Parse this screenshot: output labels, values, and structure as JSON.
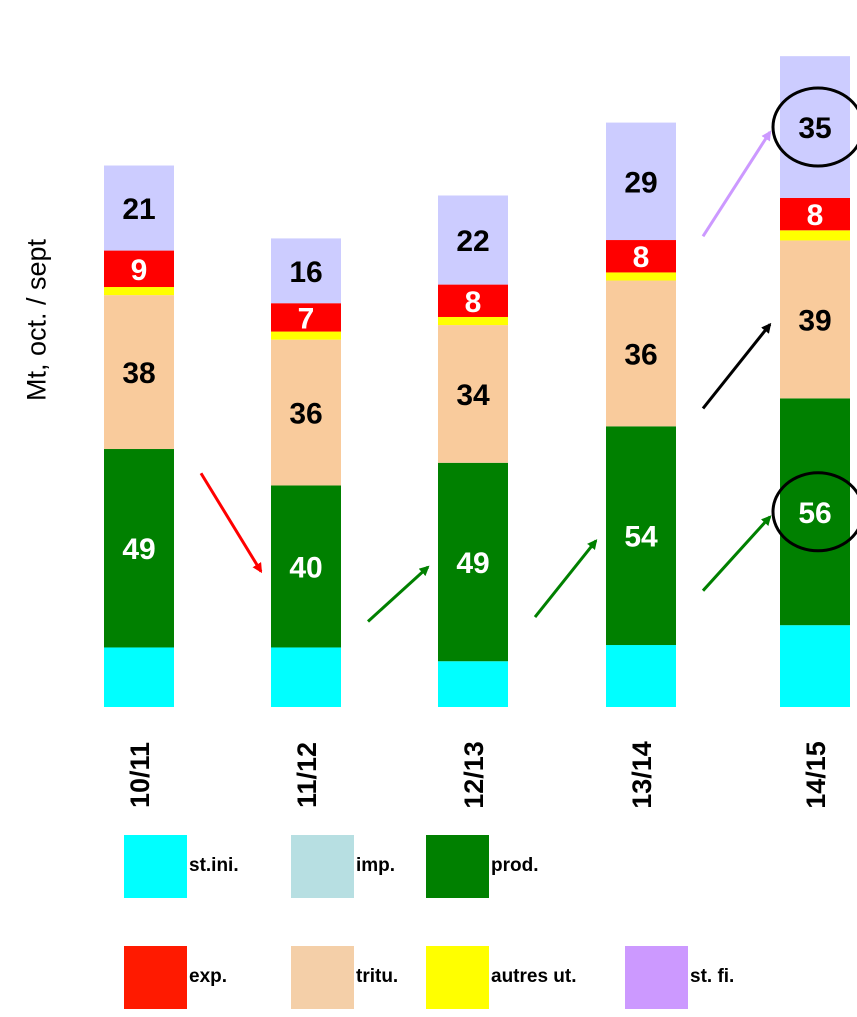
{
  "chart_data": {
    "type": "bar",
    "stacked": true,
    "ylabel": "Mt, oct. / sept",
    "categories": [
      "10/11",
      "11/12",
      "12/13",
      "13/14",
      "14/15"
    ],
    "series": [
      {
        "name": "st.ini.",
        "key": "st_ini",
        "color": "#00ffff",
        "values": [
          14.7,
          14.7,
          11.3,
          15.3,
          20.2
        ],
        "labels": [
          null,
          null,
          null,
          null,
          null
        ],
        "label_color": "#000000"
      },
      {
        "name": "imp.",
        "key": "imp",
        "color": "#b7dfe2",
        "values": [
          0,
          0,
          0,
          0,
          0
        ],
        "labels": [
          null,
          null,
          null,
          null,
          null
        ],
        "label_color": "#000000"
      },
      {
        "name": "prod.",
        "key": "prod",
        "color": "#008000",
        "values": [
          49,
          40,
          49,
          54,
          56
        ],
        "labels": [
          "49",
          "40",
          "49",
          "54",
          "56"
        ],
        "label_color": "#ffffff"
      },
      {
        "name": "tritu.",
        "key": "tritu",
        "color": "#f9cb9c",
        "values": [
          38,
          36,
          34,
          36,
          39
        ],
        "labels": [
          "38",
          "36",
          "34",
          "36",
          "39"
        ],
        "label_color": "#000000"
      },
      {
        "name": "autres ut.",
        "key": "autres_ut",
        "color": "#ffff00",
        "values": [
          2,
          2,
          2,
          2,
          2.5
        ],
        "labels": [
          null,
          null,
          null,
          null,
          null
        ],
        "label_color": "#000000"
      },
      {
        "name": "exp.",
        "key": "exp",
        "color": "#ff0000",
        "values": [
          9,
          7,
          8,
          8,
          8
        ],
        "labels": [
          "9",
          "7",
          "8",
          "8",
          "8"
        ],
        "label_color": "#ffffff"
      },
      {
        "name": "st. fi.",
        "key": "st_fi",
        "color": "#ccccff",
        "values": [
          21,
          16,
          22,
          29,
          35
        ],
        "labels": [
          "21",
          "16",
          "22",
          "29",
          "35"
        ],
        "label_color": "#000000"
      }
    ],
    "annotations": {
      "arrows": [
        {
          "from": "10/11",
          "to": "11/12",
          "series": "prod.",
          "color": "#ff0000"
        },
        {
          "from": "11/12",
          "to": "12/13",
          "series": "prod.",
          "color": "#008000"
        },
        {
          "from": "12/13",
          "to": "13/14",
          "series": "prod.",
          "color": "#008000"
        },
        {
          "from": "13/14",
          "to": "14/15",
          "series": "prod.",
          "color": "#008000"
        },
        {
          "from": "13/14",
          "to": "14/15",
          "series": "tritu.",
          "color": "#000000"
        },
        {
          "from": "13/14",
          "to": "14/15",
          "series": "st. fi.",
          "color": "#cc99ff"
        }
      ],
      "circled": [
        {
          "category": "14/15",
          "series": "st. fi."
        },
        {
          "category": "14/15",
          "series": "prod."
        }
      ]
    },
    "grid": false
  },
  "legend": {
    "rows": [
      [
        {
          "label": "st.ini.",
          "color": "#00ffff"
        },
        {
          "label": "imp.",
          "color": "#b7dfe2"
        },
        {
          "label": "prod.",
          "color": "#008000"
        }
      ],
      [
        {
          "label": "exp.",
          "color": "#ff1a00"
        },
        {
          "label": "tritu.",
          "color": "#f4cfa8"
        },
        {
          "label": "autres ut.",
          "color": "#ffff00"
        },
        {
          "label": "st. fi.",
          "color": "#cc99ff"
        }
      ]
    ]
  }
}
